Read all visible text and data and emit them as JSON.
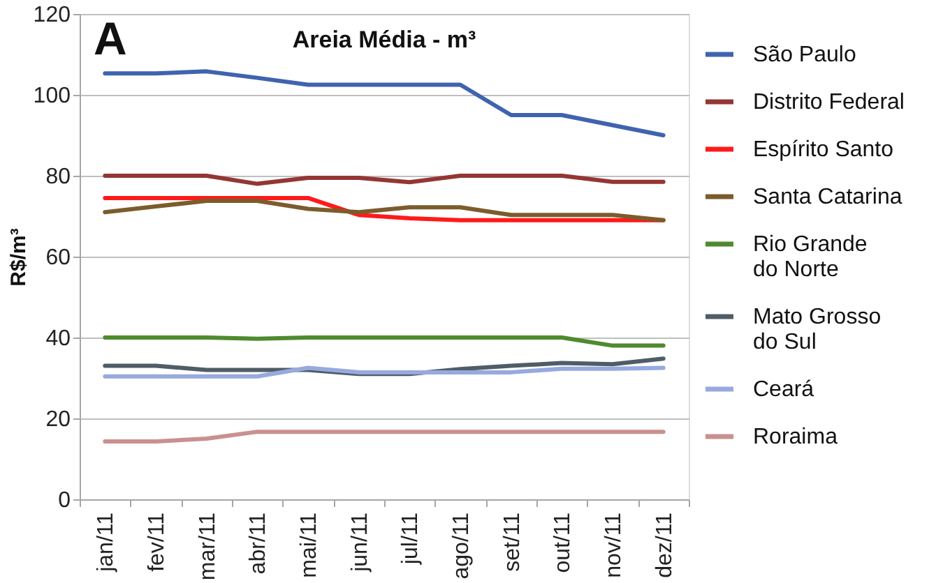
{
  "chart_data": {
    "type": "line",
    "title": "Areia Média - m³",
    "ylabel": "R$/m³",
    "annotations": [
      "A"
    ],
    "categories": [
      "jan/11",
      "fev/11",
      "mar/11",
      "abr/11",
      "mai/11",
      "jun/11",
      "jul/11",
      "ago/11",
      "set/11",
      "out/11",
      "nov/11",
      "dez/11"
    ],
    "ylim": [
      0,
      120
    ],
    "yticks": [
      0,
      20,
      40,
      60,
      80,
      100,
      120
    ],
    "grid": "y",
    "legend": "right",
    "marker": "none",
    "line_style": "solid",
    "series": [
      {
        "name": "São Paulo",
        "color": "#4063b0",
        "values": [
          105.3,
          105.3,
          105.8,
          104.2,
          102.5,
          102.5,
          102.5,
          102.5,
          95,
          95,
          92.5,
          90
        ]
      },
      {
        "name": "Distrito Federal",
        "color": "#943634",
        "values": [
          80,
          80,
          80,
          78,
          79.5,
          79.5,
          78.4,
          80,
          80,
          80,
          78.5,
          78.5
        ]
      },
      {
        "name": "Espírito Santo",
        "color": "#ff1a1a",
        "values": [
          74.5,
          74.5,
          74.5,
          74.5,
          74.5,
          70.3,
          69.5,
          69,
          69,
          69,
          69,
          69
        ]
      },
      {
        "name": "Santa Catarina",
        "color": "#7b5c2c",
        "values": [
          71,
          72.4,
          73.8,
          73.8,
          71.8,
          71,
          72.2,
          72.2,
          70.3,
          70.3,
          70.3,
          69
        ]
      },
      {
        "name": "Rio Grande do Norte",
        "color": "#4f8a2f",
        "values": [
          40,
          40,
          40,
          39.7,
          40,
          40,
          40,
          40,
          40,
          40,
          38,
          38
        ]
      },
      {
        "name": "Mato Grosso do Sul",
        "color": "#4e5d68",
        "values": [
          33,
          33,
          32,
          32,
          32,
          31,
          31,
          32.2,
          33,
          33.7,
          33.4,
          34.8
        ]
      },
      {
        "name": "Ceará",
        "color": "#97a9de",
        "values": [
          30.4,
          30.4,
          30.4,
          30.4,
          32.5,
          31.4,
          31.4,
          31.4,
          31.4,
          32.3,
          32.3,
          32.5
        ]
      },
      {
        "name": "Roraima",
        "color": "#c9908f",
        "values": [
          14.3,
          14.3,
          15,
          16.7,
          16.7,
          16.7,
          16.7,
          16.7,
          16.7,
          16.7,
          16.7,
          16.7
        ]
      }
    ]
  }
}
